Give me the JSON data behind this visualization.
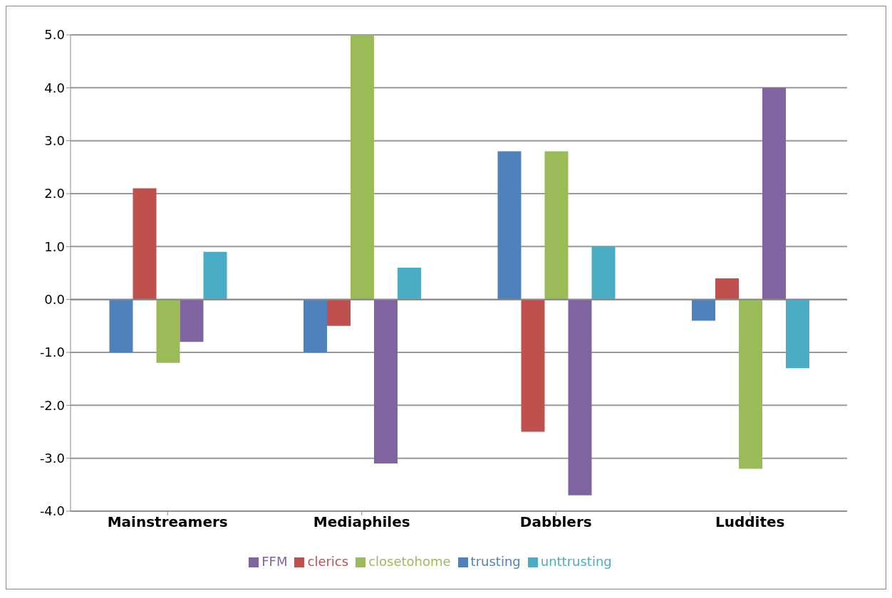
{
  "chart_data": {
    "type": "bar",
    "categories": [
      "Mainstreamers",
      "Mediaphiles",
      "Dabblers",
      "Luddites"
    ],
    "series": [
      {
        "name": "trusting",
        "color": "#4f81bd",
        "values": [
          -1.0,
          -1.0,
          2.8,
          -0.4
        ]
      },
      {
        "name": "clerics",
        "color": "#c0504d",
        "values": [
          2.1,
          -0.5,
          -2.5,
          0.4
        ]
      },
      {
        "name": "closetohome",
        "color": "#9bbb59",
        "values": [
          -1.2,
          5.0,
          2.8,
          -3.2
        ]
      },
      {
        "name": "FFM",
        "color": "#8064a2",
        "values": [
          -0.8,
          -3.1,
          -3.7,
          4.0
        ]
      },
      {
        "name": "unttrusting",
        "color": "#4bacc6",
        "values": [
          0.9,
          0.6,
          1.0,
          -1.3
        ]
      }
    ],
    "ylim": [
      -4,
      5
    ],
    "yticks": [
      {
        "value": -4,
        "label": "-4.0"
      },
      {
        "value": -3,
        "label": "-3.0"
      },
      {
        "value": -2,
        "label": "-2.0"
      },
      {
        "value": -1,
        "label": "-1.0"
      },
      {
        "value": 0,
        "label": "0.0"
      },
      {
        "value": 1,
        "label": "1.0"
      },
      {
        "value": 2,
        "label": "2.0"
      },
      {
        "value": 3,
        "label": "3.0"
      },
      {
        "value": 4,
        "label": "4.0"
      },
      {
        "value": 5,
        "label": "5.0"
      }
    ],
    "grid": "y",
    "legend": "bottom"
  }
}
